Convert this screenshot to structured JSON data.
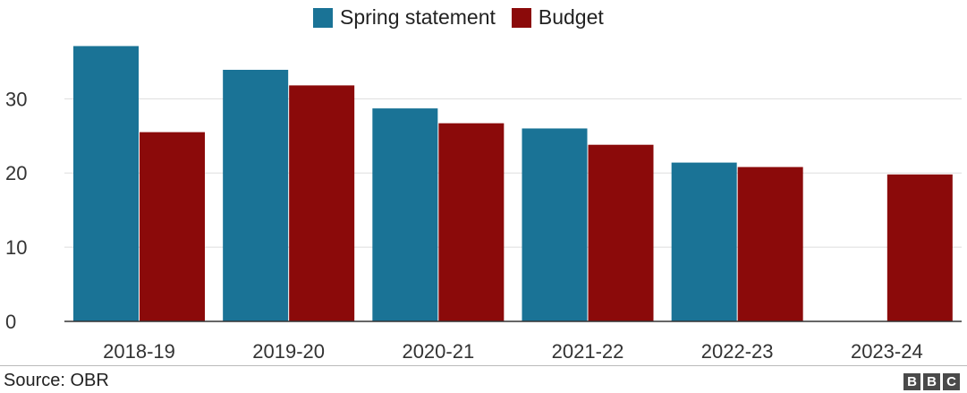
{
  "chart_data": {
    "type": "bar",
    "categories": [
      "2018-19",
      "2019-20",
      "2020-21",
      "2021-22",
      "2022-23",
      "2023-24"
    ],
    "series": [
      {
        "name": "Spring statement",
        "color": "#1a7396",
        "values": [
          37.1,
          33.9,
          28.7,
          26.0,
          21.4,
          null
        ]
      },
      {
        "name": "Budget",
        "color": "#8b0a0a",
        "values": [
          25.5,
          31.8,
          26.7,
          23.8,
          20.8,
          19.8
        ]
      }
    ],
    "ylim": [
      0,
      38
    ],
    "yticks": [
      0,
      10,
      20,
      30
    ],
    "grid": true,
    "legend_position": "top-center"
  },
  "footer": {
    "source": "Source: OBR",
    "logo": [
      "B",
      "B",
      "C"
    ]
  }
}
